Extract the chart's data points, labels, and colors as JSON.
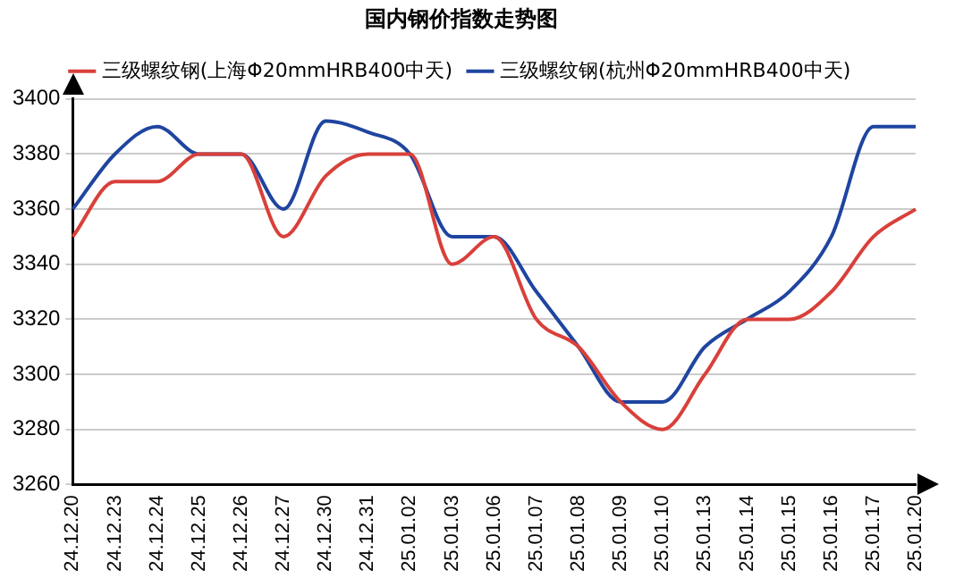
{
  "chart_data": {
    "type": "line",
    "title": "国内钢价指数走势图",
    "categories": [
      "24.12.20",
      "24.12.23",
      "24.12.24",
      "24.12.25",
      "24.12.26",
      "24.12.27",
      "24.12.30",
      "24.12.31",
      "25.01.02",
      "25.01.03",
      "25.01.06",
      "25.01.07",
      "25.01.08",
      "25.01.09",
      "25.01.10",
      "25.01.13",
      "25.01.14",
      "25.01.15",
      "25.01.16",
      "25.01.17",
      "25.01.20"
    ],
    "series": [
      {
        "name": "三级螺纹钢(上海Φ20mmHRB400中天)",
        "color": "#d9403a",
        "values": [
          3350,
          3370,
          3370,
          3380,
          3380,
          3350,
          3372,
          3380,
          3380,
          3340,
          3350,
          3320,
          3310,
          3290,
          3280,
          3300,
          3320,
          3320,
          3330,
          3350,
          3360
        ]
      },
      {
        "name": "三级螺纹钢(杭州Φ20mmHRB400中天)",
        "color": "#1f45a0",
        "values": [
          3360,
          3380,
          3390,
          3380,
          3380,
          3360,
          3392,
          3388,
          3380,
          3350,
          3350,
          3330,
          3310,
          3290,
          3290,
          3310,
          3320,
          3330,
          3350,
          3390,
          3390
        ]
      }
    ],
    "ylim": [
      3260,
      3400
    ],
    "yticks": [
      3260,
      3280,
      3300,
      3320,
      3340,
      3360,
      3380,
      3400
    ],
    "grid": "y",
    "legend": "top",
    "marker": "none",
    "line_style": "solid"
  }
}
